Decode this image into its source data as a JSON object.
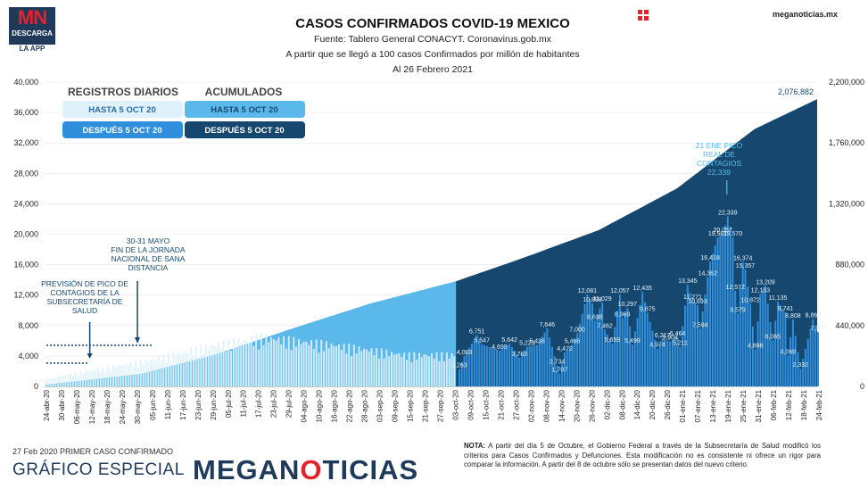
{
  "logo": {
    "mn": "MN",
    "descarga": "DESCARGA",
    "app": "LA APP"
  },
  "header": {
    "title": "CASOS CONFIRMADOS COVID-19 MEXICO",
    "source": "Fuente: Tablero General CONACYT. Coronavirus.gob.mx",
    "subtitle": "A partir que se llegó a 100 casos Confirmados por millón de habitantes",
    "date": "Al 26 Febrero 2021",
    "site": "meganoticias.mx"
  },
  "colors": {
    "accumulated_light": "#5bb8ea",
    "accumulated_dark": "#16476f",
    "daily_light": "#dff2fc",
    "daily_dark": "#2f8fdc",
    "brand": "#1f3a5a",
    "red": "#e3232b"
  },
  "legend": {
    "daily_header": "REGISTROS DIARIOS",
    "acum_header": "ACUMULADOS",
    "daily_before": "HASTA 5 OCT 20",
    "daily_after": "DESPUÉS 5 OCT 20",
    "acum_before": "HASTA 5 OCT 20",
    "acum_after": "DESPUÉS 5 OCT 20"
  },
  "annotations": {
    "prevision": [
      "PREVISIÓN DE PICO DE",
      "CONTAGIOS DE LA",
      "SUBSECRETARÍA DE",
      "SALUD"
    ],
    "jornada": [
      "30-31 MAYO",
      "FIN DE LA JORNADA",
      "NACIONAL DE SANA",
      "DISTANCIA"
    ],
    "peak": [
      "21 ENE PICO",
      "REAL DE",
      "CONTAGIOS",
      "22,339"
    ]
  },
  "chart_data": {
    "type": "bar",
    "title": "CASOS CONFIRMADOS COVID-19 MEXICO",
    "y_left": {
      "range": [
        0,
        40000
      ],
      "ticks": [
        "0",
        "4,000",
        "8,000",
        "12,000",
        "16,000",
        "20,000",
        "24,000",
        "28,000",
        "32,000",
        "36,000",
        "40,000"
      ]
    },
    "y_right": {
      "range": [
        0,
        2200000
      ],
      "ticks": [
        "0",
        "440,000",
        "880,000",
        "1,320,000",
        "1,760,000",
        "2,200,000"
      ]
    },
    "x_start": "2020-04-24",
    "x_end": "2021-02-26",
    "x_tick_labels": [
      "24-abr-20",
      "30-abr-20",
      "06-may-20",
      "12-may-20",
      "18-may-20",
      "24-may-20",
      "30-may-20",
      "05-jun-20",
      "11-jun-20",
      "17-jun-20",
      "23-jun-20",
      "29-jun-20",
      "05-jul-20",
      "11-jul-20",
      "17-jul-20",
      "23-jul-20",
      "29-jul-20",
      "04-ago-20",
      "10-ago-20",
      "16-ago-20",
      "22-ago-20",
      "28-ago-20",
      "03-sep-20",
      "09-sep-20",
      "15-sep-20",
      "21-sep-20",
      "27-sep-20",
      "03-oct-20",
      "09-oct-20",
      "15-oct-20",
      "21-oct-20",
      "27-oct-20",
      "02-nov-20",
      "08-nov-20",
      "14-nov-20",
      "20-nov-20",
      "26-nov-20",
      "02-dic-20",
      "08-dic-20",
      "14-dic-20",
      "20-dic-20",
      "26-dic-20",
      "01-ene-21",
      "07-ene-21",
      "13-ene-21",
      "19-ene-21",
      "25-ene-21",
      "31-ene-21",
      "06-feb-21",
      "12-feb-21",
      "18-feb-21",
      "24-feb-21"
    ],
    "cutoff": "2020-10-05",
    "accumulated_anchors": [
      {
        "date": "2020-04-24",
        "value": 12000
      },
      {
        "date": "2020-06-01",
        "value": 90000
      },
      {
        "date": "2020-07-01",
        "value": 230000
      },
      {
        "date": "2020-08-01",
        "value": 420000
      },
      {
        "date": "2020-09-01",
        "value": 600000
      },
      {
        "date": "2020-10-05",
        "value": 760000
      },
      {
        "date": "2020-11-01",
        "value": 930000
      },
      {
        "date": "2020-12-01",
        "value": 1130000
      },
      {
        "date": "2021-01-01",
        "value": 1430000
      },
      {
        "date": "2021-02-01",
        "value": 1860000
      },
      {
        "date": "2021-02-26",
        "value": 2076882
      }
    ],
    "accumulated_last_label": "2,076,882",
    "daily_labels": [
      {
        "date": "2020-10-06",
        "value": 2263,
        "label": "2,263"
      },
      {
        "date": "2020-10-08",
        "value": 4003,
        "label": "4,003"
      },
      {
        "date": "2020-10-13",
        "value": 6751,
        "label": "6,751"
      },
      {
        "date": "2020-10-15",
        "value": 5547,
        "label": "5,547"
      },
      {
        "date": "2020-10-22",
        "value": 4699,
        "label": "4,699"
      },
      {
        "date": "2020-10-26",
        "value": 5642,
        "label": "5,642"
      },
      {
        "date": "2020-10-30",
        "value": 3763,
        "label": "3,763"
      },
      {
        "date": "2020-11-02",
        "value": 5223,
        "label": "5,223"
      },
      {
        "date": "2020-11-06",
        "value": 5438,
        "label": "5,438"
      },
      {
        "date": "2020-11-10",
        "value": 7646,
        "label": "7,646"
      },
      {
        "date": "2020-11-14",
        "value": 2734,
        "label": "2,734"
      },
      {
        "date": "2020-11-15",
        "value": 1707,
        "label": "1,707"
      },
      {
        "date": "2020-11-17",
        "value": 4472,
        "label": "4,472"
      },
      {
        "date": "2020-11-20",
        "value": 5466,
        "label": "5,466"
      },
      {
        "date": "2020-11-22",
        "value": 7000,
        "label": "7,000"
      },
      {
        "date": "2020-11-26",
        "value": 12081,
        "label": "12,081"
      },
      {
        "date": "2020-11-28",
        "value": 10898,
        "label": "10,898"
      },
      {
        "date": "2020-11-29",
        "value": 8638,
        "label": "8,638"
      },
      {
        "date": "2020-12-02",
        "value": 11029,
        "label": "11,029"
      },
      {
        "date": "2020-12-03",
        "value": 7462,
        "label": "7,462"
      },
      {
        "date": "2020-12-06",
        "value": 5659,
        "label": "5,659"
      },
      {
        "date": "2020-12-09",
        "value": 12057,
        "label": "12,057"
      },
      {
        "date": "2020-12-10",
        "value": 8969,
        "label": "8,969"
      },
      {
        "date": "2020-12-12",
        "value": 10297,
        "label": "10,297"
      },
      {
        "date": "2020-12-14",
        "value": 5499,
        "label": "5,499"
      },
      {
        "date": "2020-12-18",
        "value": 12435,
        "label": "12,435"
      },
      {
        "date": "2020-12-20",
        "value": 9675,
        "label": "9,675"
      },
      {
        "date": "2020-12-24",
        "value": 4974,
        "label": "4,974"
      },
      {
        "date": "2020-12-26",
        "value": 6217,
        "label": "6,217"
      },
      {
        "date": "2020-12-29",
        "value": 5904,
        "label": "5,904"
      },
      {
        "date": "2021-01-01",
        "value": 6464,
        "label": "6,464"
      },
      {
        "date": "2021-01-02",
        "value": 5211,
        "label": "5,211"
      },
      {
        "date": "2021-01-05",
        "value": 13345,
        "label": "13,345"
      },
      {
        "date": "2021-01-07",
        "value": 11271,
        "label": "11,271"
      },
      {
        "date": "2021-01-09",
        "value": 10693,
        "label": "10,693"
      },
      {
        "date": "2021-01-10",
        "value": 7594,
        "label": "7,594"
      },
      {
        "date": "2021-01-13",
        "value": 14362,
        "label": "14,362"
      },
      {
        "date": "2021-01-14",
        "value": 16418,
        "label": "16,418"
      },
      {
        "date": "2021-01-17",
        "value": 19581,
        "label": "19,581"
      },
      {
        "date": "2021-01-19",
        "value": 20057,
        "label": "20,057"
      },
      {
        "date": "2021-01-21",
        "value": 22339,
        "label": "22,339"
      },
      {
        "date": "2021-01-23",
        "value": 19570,
        "label": "19,570"
      },
      {
        "date": "2021-01-24",
        "value": 12572,
        "label": "12,572"
      },
      {
        "date": "2021-01-25",
        "value": 9579,
        "label": "9,579"
      },
      {
        "date": "2021-01-27",
        "value": 16374,
        "label": "16,374"
      },
      {
        "date": "2021-01-28",
        "value": 15357,
        "label": "15,357"
      },
      {
        "date": "2021-01-30",
        "value": 10872,
        "label": "10,872"
      },
      {
        "date": "2021-02-01",
        "value": 4886,
        "label": "4,886"
      },
      {
        "date": "2021-02-03",
        "value": 12153,
        "label": "12,153"
      },
      {
        "date": "2021-02-05",
        "value": 13209,
        "label": "13,209"
      },
      {
        "date": "2021-02-08",
        "value": 6065,
        "label": "6,065"
      },
      {
        "date": "2021-02-10",
        "value": 11135,
        "label": "11,135"
      },
      {
        "date": "2021-02-13",
        "value": 9741,
        "label": "9,741"
      },
      {
        "date": "2021-02-14",
        "value": 4069,
        "label": "4,069"
      },
      {
        "date": "2021-02-16",
        "value": 8808,
        "label": "8,808"
      },
      {
        "date": "2021-02-19",
        "value": 2332,
        "label": "2,332"
      },
      {
        "date": "2021-02-24",
        "value": 8862,
        "label": "8,862"
      },
      {
        "date": "2021-02-26",
        "value": 7132,
        "label": "7,132"
      }
    ],
    "daily_before_cutoff_rough": [
      {
        "date": "2020-04-24",
        "value": 1000
      },
      {
        "date": "2020-05-15",
        "value": 2500
      },
      {
        "date": "2020-06-01",
        "value": 3500
      },
      {
        "date": "2020-07-01",
        "value": 6000
      },
      {
        "date": "2020-07-20",
        "value": 7000
      },
      {
        "date": "2020-08-15",
        "value": 6000
      },
      {
        "date": "2020-09-15",
        "value": 4500
      },
      {
        "date": "2020-10-04",
        "value": 4500
      }
    ]
  },
  "footer": {
    "first_case": "27 Feb 2020 PRIMER CASO CONFIRMADO",
    "grafico": "GRÁFICO ESPECIAL",
    "brand_a": "MEGAN",
    "brand_b": "O",
    "brand_c": "TICIAS",
    "note_bold": "NOTA:",
    "note": " A partir del día 5 de Octubre, el Gobierno Federal a través de la Subsecretaría de Salud modificó los criterios para Casos Confirmados y Defunciones. Esta modificación no es consistente ni ofrece un rigor para comparar la información. A partir del 8 de octubre sólo se presentan datos del nuevo criterio."
  }
}
